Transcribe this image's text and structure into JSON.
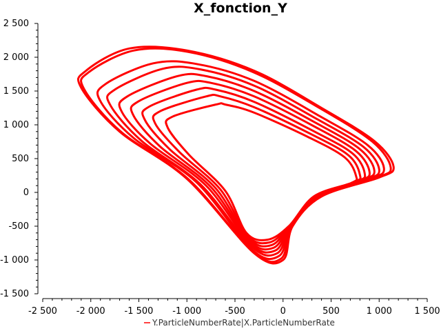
{
  "chart_data": {
    "type": "line",
    "title": "X_fonction_Y",
    "xlabel": "",
    "ylabel": "",
    "xlim": [
      -2500,
      1500
    ],
    "ylim": [
      -1500,
      2500
    ],
    "x_ticks": [
      -2500,
      -2000,
      -1500,
      -1000,
      -500,
      0,
      500,
      1000,
      1500
    ],
    "x_tick_labels": [
      "-2 500",
      "-2 000",
      "-1 500",
      "-1 000",
      "-500",
      "0",
      "500",
      "1 000",
      "1 500"
    ],
    "y_ticks": [
      -1500,
      -1000,
      -500,
      0,
      500,
      1000,
      1500,
      2000,
      2500
    ],
    "y_tick_labels": [
      "-1 500",
      "-1 000",
      "-500",
      "0",
      "500",
      "1 000",
      "1 500",
      "2 000",
      "2 500"
    ],
    "grid": false,
    "legend_position": "bottom-center",
    "series": [
      {
        "name": "Y.ParticleNumberRate|X.ParticleNumberRate",
        "color": "#ff0000",
        "loops": [
          {
            "x": [
              -1600,
              -2050,
              -2100,
              -1700,
              -1000,
              -300,
              0,
              100,
              400,
              1000,
              1150,
              950,
              400,
              -300,
              -1000,
              -1600
            ],
            "y": [
              2130,
              1800,
              1550,
              900,
              200,
              -900,
              -1000,
              -500,
              -60,
              220,
              380,
              760,
              1250,
              1800,
              2100,
              2130
            ]
          },
          {
            "x": [
              -1550,
              -2020,
              -2070,
              -1680,
              -980,
              -310,
              -20,
              95,
              390,
              980,
              1120,
              930,
              390,
              -310,
              -990,
              -1550
            ],
            "y": [
              2100,
              1780,
              1530,
              890,
              190,
              -880,
              -980,
              -500,
              -60,
              220,
              370,
              750,
              1240,
              1780,
              2080,
              2100
            ]
          },
          {
            "x": [
              -1350,
              -1850,
              -1900,
              -1550,
              -900,
              -320,
              -40,
              90,
              380,
              920,
              1050,
              880,
              380,
              -300,
              -900,
              -1350
            ],
            "y": [
              1910,
              1600,
              1350,
              800,
              150,
              -850,
              -940,
              -500,
              -60,
              200,
              360,
              700,
              1130,
              1650,
              1900,
              1910
            ]
          },
          {
            "x": [
              -1250,
              -1750,
              -1800,
              -1470,
              -860,
              -330,
              -60,
              85,
              370,
              880,
              1000,
              840,
              360,
              -300,
              -860,
              -1250
            ],
            "y": [
              1830,
              1520,
              1300,
              760,
              120,
              -800,
              -900,
              -500,
              -60,
              190,
              340,
              670,
              1080,
              1580,
              1820,
              1830
            ]
          },
          {
            "x": [
              -1100,
              -1620,
              -1680,
              -1380,
              -800,
              -340,
              -80,
              80,
              360,
              830,
              950,
              800,
              340,
              -300,
              -800,
              -1100
            ],
            "y": [
              1720,
              1420,
              1200,
              720,
              100,
              -760,
              -860,
              -500,
              -60,
              180,
              320,
              640,
              1030,
              1500,
              1720,
              1720
            ]
          },
          {
            "x": [
              -1000,
              -1500,
              -1560,
              -1280,
              -750,
              -350,
              -100,
              75,
              350,
              800,
              900,
              760,
              320,
              -300,
              -750,
              -1000
            ],
            "y": [
              1620,
              1350,
              1150,
              680,
              80,
              -720,
              -820,
              -500,
              -60,
              170,
              300,
              610,
              980,
              1420,
              1620,
              1620
            ]
          },
          {
            "x": [
              -900,
              -1390,
              -1440,
              -1180,
              -700,
              -360,
              -120,
              70,
              340,
              770,
              850,
              720,
              300,
              -300,
              -700,
              -900
            ],
            "y": [
              1520,
              1270,
              1080,
              640,
              60,
              -680,
              -780,
              -500,
              -60,
              160,
              280,
              580,
              920,
              1340,
              1520,
              1520
            ]
          },
          {
            "x": [
              -800,
              -1280,
              -1330,
              -1080,
              -650,
              -370,
              -140,
              65,
              330,
              740,
              800,
              680,
              280,
              -300,
              -650,
              -800
            ],
            "y": [
              1420,
              1200,
              1020,
              600,
              40,
              -640,
              -740,
              -500,
              -60,
              150,
              260,
              550,
              870,
              1260,
              1420,
              1420
            ]
          },
          {
            "x": [
              -700,
              -1150,
              -1200,
              -980,
              -600,
              -380,
              -160,
              60,
              320,
              710,
              760,
              640,
              260,
              -300,
              -600,
              -700
            ],
            "y": [
              1300,
              1120,
              960,
              560,
              20,
              -600,
              -700,
              -500,
              -60,
              140,
              240,
              520,
              820,
              1180,
              1300,
              1300
            ]
          }
        ]
      }
    ]
  }
}
